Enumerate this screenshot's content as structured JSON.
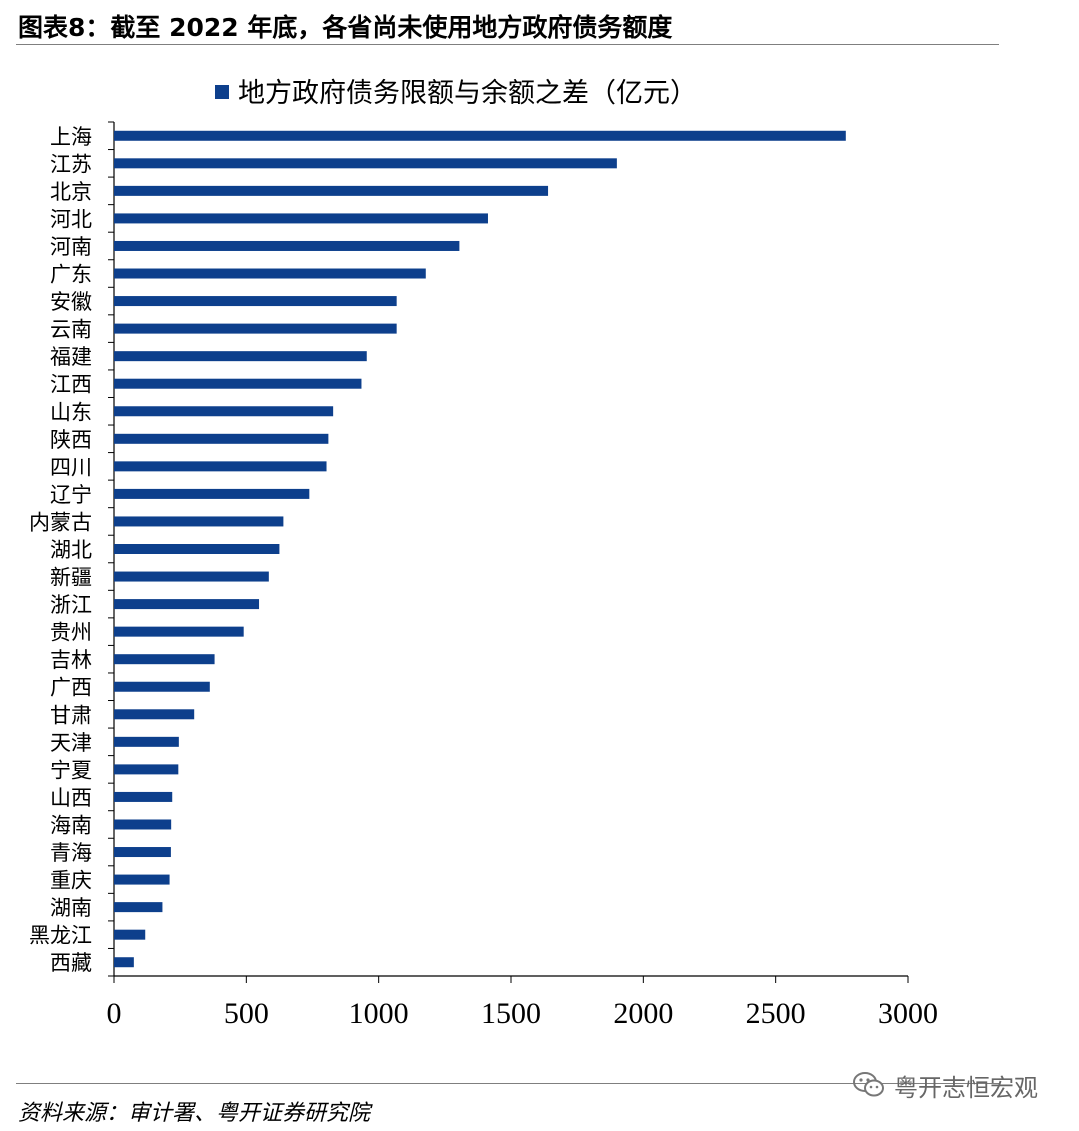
{
  "page": {
    "figure_title": "图表8：截至 2022 年底，各省尚未使用地方政府债务额度",
    "source": "资料来源：审计署、粤开证券研究院",
    "watermark": "粤开志恒宏观",
    "watermark_icon": "wechat-icon"
  },
  "chart_data": {
    "type": "bar",
    "orientation": "horizontal",
    "legend": {
      "position": "top-center",
      "entries": [
        "地方政府债务限额与余额之差（亿元）"
      ]
    },
    "categories": [
      "上海",
      "江苏",
      "北京",
      "河北",
      "河南",
      "广东",
      "安徽",
      "云南",
      "福建",
      "江西",
      "山东",
      "陕西",
      "四川",
      "辽宁",
      "内蒙古",
      "湖北",
      "新疆",
      "浙江",
      "贵州",
      "吉林",
      "广西",
      "甘肃",
      "天津",
      "宁夏",
      "山西",
      "海南",
      "青海",
      "重庆",
      "湖南",
      "黑龙江",
      "西藏"
    ],
    "series": [
      {
        "name": "地方政府债务限额与余额之差（亿元）",
        "color": "#0d3f8c",
        "values": [
          2765,
          1900,
          1640,
          1413,
          1305,
          1178,
          1068,
          1068,
          955,
          935,
          828,
          810,
          803,
          738,
          640,
          625,
          585,
          548,
          490,
          380,
          362,
          303,
          245,
          243,
          220,
          216,
          215,
          210,
          183,
          118,
          75
        ]
      }
    ],
    "xlim": [
      0,
      3000
    ],
    "xticks": [
      "0",
      "500",
      "1000",
      "1500",
      "2000",
      "2500",
      "3000"
    ],
    "grid": false
  }
}
